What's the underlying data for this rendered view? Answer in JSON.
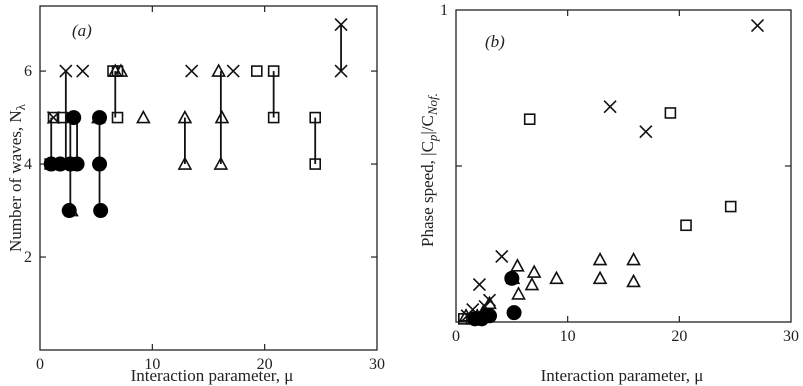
{
  "chart_data": [
    {
      "type": "scatter",
      "panel_label": "(a)",
      "xlabel": "Interaction parameter, μ",
      "ylabel_main": "Number of waves, N",
      "ylabel_sub": "λ",
      "xlim": [
        0,
        30
      ],
      "ylim": [
        0,
        7.4
      ],
      "xticks": [
        "0",
        "10",
        "20",
        "30"
      ],
      "yticks": [
        "2",
        "4",
        "6"
      ],
      "series": [
        {
          "marker": "cross",
          "points": [
            [
              1.2,
              5
            ],
            [
              2.3,
              6
            ],
            [
              3.8,
              6
            ],
            [
              13.5,
              6
            ],
            [
              17.2,
              6
            ],
            [
              26.8,
              7
            ],
            [
              26.8,
              6
            ]
          ]
        },
        {
          "marker": "square",
          "points": [
            [
              0.9,
              4
            ],
            [
              1.5,
              4
            ],
            [
              1.2,
              5
            ],
            [
              2.0,
              5
            ],
            [
              6.5,
              6
            ],
            [
              6.9,
              5
            ],
            [
              6.9,
              6
            ],
            [
              19.3,
              6
            ],
            [
              20.8,
              6
            ],
            [
              20.8,
              5
            ],
            [
              24.5,
              5
            ],
            [
              24.5,
              4
            ]
          ]
        },
        {
          "marker": "triangle",
          "points": [
            [
              1.7,
              4
            ],
            [
              2.8,
              3
            ],
            [
              5.2,
              5
            ],
            [
              6.7,
              6
            ],
            [
              7.2,
              6
            ],
            [
              9.2,
              5
            ],
            [
              12.9,
              5
            ],
            [
              12.9,
              4
            ],
            [
              15.9,
              6
            ],
            [
              16.2,
              5
            ],
            [
              16.1,
              4
            ]
          ]
        },
        {
          "marker": "circle",
          "points": [
            [
              1.0,
              4
            ],
            [
              1.8,
              4
            ],
            [
              2.7,
              4
            ],
            [
              2.6,
              3
            ],
            [
              3.0,
              5
            ],
            [
              3.3,
              4
            ],
            [
              5.3,
              5
            ],
            [
              5.3,
              4
            ],
            [
              5.4,
              3
            ]
          ]
        }
      ],
      "vertical_links": [
        {
          "x": 1.0,
          "y": [
            4,
            5
          ]
        },
        {
          "x": 2.3,
          "y": [
            4,
            6
          ]
        },
        {
          "x": 2.7,
          "y": [
            3,
            5
          ]
        },
        {
          "x": 3.3,
          "y": [
            4,
            5
          ]
        },
        {
          "x": 5.3,
          "y": [
            3,
            5
          ]
        },
        {
          "x": 6.7,
          "y": [
            5,
            6
          ]
        },
        {
          "x": 12.9,
          "y": [
            4,
            5
          ]
        },
        {
          "x": 16.1,
          "y": [
            4,
            6
          ]
        },
        {
          "x": 20.8,
          "y": [
            5,
            6
          ]
        },
        {
          "x": 24.5,
          "y": [
            4,
            5
          ]
        },
        {
          "x": 26.8,
          "y": [
            6,
            7
          ]
        }
      ]
    },
    {
      "type": "scatter",
      "panel_label": "(b)",
      "xlabel": "Interaction parameter, μ",
      "ylabel_main": "Phase speed, |C",
      "ylabel_sub1": "p",
      "ylabel_mid": "|/C",
      "ylabel_sub2": "Nof.",
      "xlim": [
        0,
        30
      ],
      "ylim": [
        0,
        1
      ],
      "xticks": [
        "0",
        "10",
        "20",
        "30"
      ],
      "yticks": [
        "1"
      ],
      "series": [
        {
          "marker": "cross",
          "points": [
            [
              1.0,
              0.02
            ],
            [
              1.5,
              0.04
            ],
            [
              2.1,
              0.12
            ],
            [
              2.6,
              0.05
            ],
            [
              3.0,
              0.07
            ],
            [
              4.1,
              0.21
            ],
            [
              13.8,
              0.69
            ],
            [
              17.0,
              0.61
            ],
            [
              27.0,
              0.95
            ]
          ]
        },
        {
          "marker": "square",
          "points": [
            [
              0.7,
              0.01
            ],
            [
              1.4,
              0.01
            ],
            [
              6.6,
              0.65
            ],
            [
              19.2,
              0.67
            ],
            [
              20.6,
              0.31
            ],
            [
              24.6,
              0.37
            ]
          ]
        },
        {
          "marker": "triangle",
          "points": [
            [
              0.9,
              0.02
            ],
            [
              1.9,
              0.02
            ],
            [
              2.4,
              0.03
            ],
            [
              3.0,
              0.06
            ],
            [
              5.1,
              0.14
            ],
            [
              5.5,
              0.18
            ],
            [
              5.6,
              0.09
            ],
            [
              6.8,
              0.12
            ],
            [
              7.0,
              0.16
            ],
            [
              9.0,
              0.14
            ],
            [
              12.9,
              0.14
            ],
            [
              12.9,
              0.2
            ],
            [
              15.9,
              0.13
            ],
            [
              15.9,
              0.2
            ]
          ]
        },
        {
          "marker": "circle",
          "points": [
            [
              1.7,
              0.01
            ],
            [
              2.3,
              0.01
            ],
            [
              2.7,
              0.02
            ],
            [
              3.0,
              0.02
            ],
            [
              5.0,
              0.14
            ],
            [
              5.2,
              0.03
            ]
          ]
        }
      ]
    }
  ]
}
